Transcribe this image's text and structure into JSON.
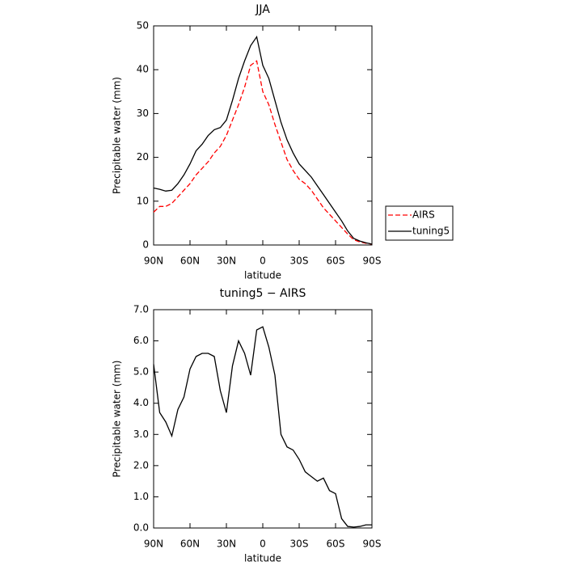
{
  "chart_data": [
    {
      "type": "line",
      "title": "JJA",
      "xlabel": "latitude",
      "ylabel": "Precipitable water (mm)",
      "x": [
        90,
        85,
        80,
        75,
        70,
        65,
        60,
        55,
        50,
        45,
        40,
        35,
        30,
        25,
        20,
        15,
        10,
        5,
        0,
        -5,
        -10,
        -15,
        -20,
        -25,
        -30,
        -35,
        -40,
        -45,
        -50,
        -55,
        -60,
        -65,
        -70,
        -75,
        -80,
        -85,
        -90
      ],
      "series": [
        {
          "name": "AIRS",
          "color": "#ff0000",
          "dash": true,
          "values": [
            7.5,
            8.8,
            8.8,
            9.5,
            11,
            12.5,
            14,
            16,
            17.5,
            19,
            21,
            22.5,
            25,
            28.5,
            32,
            36,
            41,
            42,
            35,
            32,
            27.5,
            23.5,
            19.5,
            17,
            15,
            14,
            12.5,
            10.5,
            8.5,
            7,
            5.5,
            4,
            2.5,
            1.2,
            0.7,
            0.4,
            0.2
          ]
        },
        {
          "name": "tuning5",
          "color": "#000000",
          "dash": false,
          "values": [
            13,
            12.7,
            12.3,
            12.5,
            14,
            16,
            18.5,
            21.5,
            23,
            25,
            26.3,
            26.8,
            28.5,
            33,
            38,
            42,
            45.5,
            47.5,
            41,
            38,
            33,
            28,
            24,
            21,
            18.5,
            17,
            15.5,
            13.5,
            11.5,
            9.5,
            7.5,
            5.5,
            3.2,
            1.5,
            0.9,
            0.5,
            0.2
          ]
        }
      ],
      "xlim": [
        90,
        -90
      ],
      "xticks": [
        {
          "value": 90,
          "label": "90N"
        },
        {
          "value": 60,
          "label": "60N"
        },
        {
          "value": 30,
          "label": "30N"
        },
        0,
        {
          "value": -30,
          "label": "30S"
        },
        {
          "value": -60,
          "label": "60S"
        },
        {
          "value": -90,
          "label": "90S"
        }
      ],
      "ylim": [
        0,
        50
      ],
      "yticks": [
        0,
        10,
        20,
        30,
        40,
        50
      ],
      "legend": "right"
    },
    {
      "type": "line",
      "title": "tuning5 − AIRS",
      "xlabel": "latitude",
      "ylabel": "Precipitable water (mm)",
      "x": [
        90,
        85,
        80,
        75,
        70,
        65,
        60,
        55,
        50,
        45,
        40,
        35,
        30,
        25,
        20,
        15,
        10,
        5,
        0,
        -5,
        -10,
        -15,
        -20,
        -25,
        -30,
        -35,
        -40,
        -45,
        -50,
        -55,
        -60,
        -65,
        -70,
        -75,
        -80,
        -85,
        -90
      ],
      "series": [
        {
          "color": "#000000",
          "dash": false,
          "values": [
            5.25,
            3.7,
            3.4,
            2.95,
            3.8,
            4.2,
            5.1,
            5.5,
            5.6,
            5.6,
            5.5,
            4.4,
            3.7,
            5.2,
            6.0,
            5.6,
            4.9,
            6.35,
            6.45,
            5.8,
            4.9,
            3.0,
            2.6,
            2.5,
            2.2,
            1.8,
            1.65,
            1.5,
            1.6,
            1.2,
            1.1,
            0.3,
            0.05,
            0.03,
            0.05,
            0.1,
            0.1
          ]
        }
      ],
      "xlim": [
        90,
        -90
      ],
      "xticks": [
        {
          "value": 90,
          "label": "90N"
        },
        {
          "value": 60,
          "label": "60N"
        },
        {
          "value": 30,
          "label": "30N"
        },
        0,
        {
          "value": -30,
          "label": "30S"
        },
        {
          "value": -60,
          "label": "60S"
        },
        {
          "value": -90,
          "label": "90S"
        }
      ],
      "ylim": [
        0,
        7
      ],
      "yticks": [
        {
          "value": 0,
          "label": "0.0"
        },
        {
          "value": 1,
          "label": "1.0"
        },
        {
          "value": 2,
          "label": "2.0"
        },
        {
          "value": 3,
          "label": "3.0"
        },
        {
          "value": 4,
          "label": "4.0"
        },
        {
          "value": 5,
          "label": "5.0"
        },
        {
          "value": 6,
          "label": "6.0"
        },
        {
          "value": 7,
          "label": "7.0"
        }
      ]
    }
  ]
}
